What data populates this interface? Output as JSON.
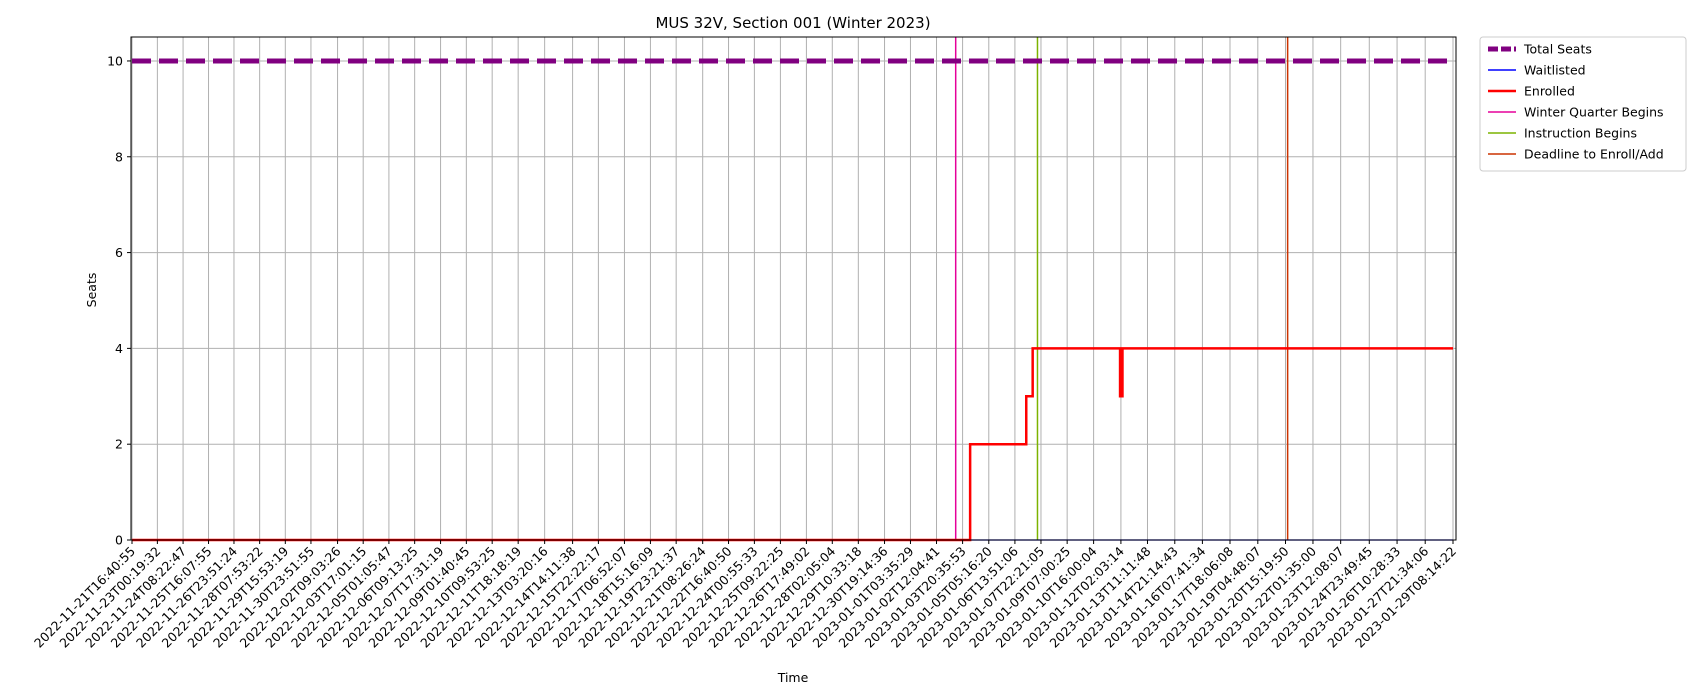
{
  "chart_data": {
    "type": "line",
    "title": "MUS 32V, Section 001 (Winter 2023)",
    "xlabel": "Time",
    "ylabel": "Seats",
    "ylim": [
      0,
      10.5
    ],
    "yticks": [
      0,
      2,
      4,
      6,
      8,
      10
    ],
    "grid": true,
    "legend_position": "outside-top-right",
    "x_ticks": [
      "2022-11-21T16:40:55",
      "2022-11-23T00:19:32",
      "2022-11-24T08:22:47",
      "2022-11-25T16:07:55",
      "2022-11-26T23:51:24",
      "2022-11-28T07:53:22",
      "2022-11-29T15:53:19",
      "2022-11-30T23:51:55",
      "2022-12-02T09:03:26",
      "2022-12-03T17:01:15",
      "2022-12-05T01:05:47",
      "2022-12-06T09:13:25",
      "2022-12-07T17:31:19",
      "2022-12-09T01:40:45",
      "2022-12-10T09:53:25",
      "2022-12-11T18:18:19",
      "2022-12-13T03:20:16",
      "2022-12-14T14:11:38",
      "2022-12-15T22:22:17",
      "2022-12-17T06:52:07",
      "2022-12-18T15:16:09",
      "2022-12-19T23:21:37",
      "2022-12-21T08:26:24",
      "2022-12-22T16:40:50",
      "2022-12-24T00:55:33",
      "2022-12-25T09:22:25",
      "2022-12-26T17:49:02",
      "2022-12-28T02:05:04",
      "2022-12-29T10:33:18",
      "2022-12-30T19:14:36",
      "2023-01-01T03:35:29",
      "2023-01-02T12:04:41",
      "2023-01-03T20:35:53",
      "2023-01-05T05:16:20",
      "2023-01-06T13:51:06",
      "2023-01-07T22:21:05",
      "2023-01-09T07:00:25",
      "2023-01-10T16:00:04",
      "2023-01-12T02:03:14",
      "2023-01-13T11:11:48",
      "2023-01-14T21:14:43",
      "2023-01-16T07:41:34",
      "2023-01-17T18:06:08",
      "2023-01-19T04:48:07",
      "2023-01-20T15:19:50",
      "2023-01-22T01:35:00",
      "2023-01-23T12:08:07",
      "2023-01-24T23:49:45",
      "2023-01-26T10:28:33",
      "2023-01-27T21:34:06",
      "2023-01-29T08:14:22"
    ],
    "series": [
      {
        "name": "Total Seats",
        "style": "dashed",
        "color": "#800080",
        "x": [
          "2022-11-21T16:40:55",
          "2023-01-29T08:14:22"
        ],
        "values": [
          10,
          10
        ]
      },
      {
        "name": "Waitlisted",
        "style": "solid",
        "color": "#0000ff",
        "x": [
          "2022-11-21T16:40:55",
          "2023-01-29T08:14:22"
        ],
        "values": [
          0,
          0
        ]
      },
      {
        "name": "Enrolled",
        "style": "step",
        "color": "#ff0000",
        "x": [
          "2022-11-21T16:40:55",
          "2023-01-04T06:00:00",
          "2023-01-07T04:00:00",
          "2023-01-07T12:00:00",
          "2023-01-12T01:00:00",
          "2023-01-12T04:00:00",
          "2023-01-29T08:14:22"
        ],
        "values": [
          0,
          2,
          3,
          4,
          3,
          4,
          4
        ]
      }
    ],
    "vlines": [
      {
        "name": "Winter Quarter Begins",
        "x": "2023-01-03T12:00:00",
        "color": "#e5009a"
      },
      {
        "name": "Instruction Begins",
        "x": "2023-01-07T18:00:00",
        "color": "#7cb300"
      },
      {
        "name": "Deadline to Enroll/Add",
        "x": "2023-01-20T18:00:00",
        "color": "#cc3300"
      }
    ]
  }
}
